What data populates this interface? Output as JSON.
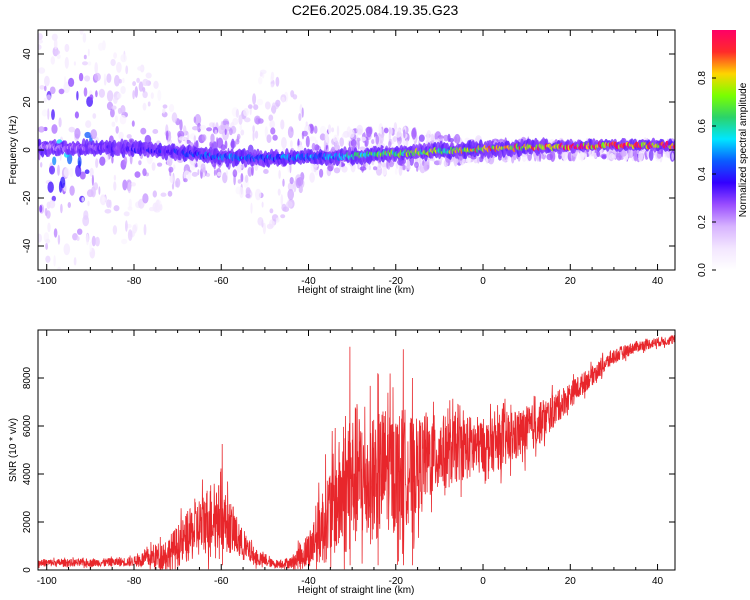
{
  "figure_title": "C2E6.2025.084.19.35.G23",
  "colors": {
    "snr_line": "#e8262b",
    "colormap": [
      "#ffffff",
      "#f3e6ff",
      "#d7b3ff",
      "#9a4dff",
      "#3300ff",
      "#0a5cff",
      "#00e6ff",
      "#2bd36a",
      "#7aff00",
      "#ffd400",
      "#ff2a2a",
      "#ff0066"
    ]
  },
  "chart_data": [
    {
      "type": "heatmap",
      "xlabel": "Height of straight line (km)",
      "ylabel": "Frequency (Hz)",
      "xlim": [
        -102,
        44
      ],
      "ylim": [
        -50,
        50
      ],
      "x_ticks": [
        -100,
        -80,
        -60,
        -40,
        -20,
        0,
        20,
        40
      ],
      "y_ticks": [
        -40,
        -20,
        0,
        20,
        40
      ],
      "colorbar": {
        "label": "Normalized spectral amplitude",
        "range": [
          0.0,
          1.0
        ],
        "ticks": [
          "0.0",
          "0.2",
          "0.4",
          "0.6",
          "0.8"
        ]
      },
      "ridge": {
        "x": [
          -100,
          -90,
          -80,
          -70,
          -60,
          -50,
          -40,
          -30,
          -20,
          -10,
          0,
          10,
          20,
          30,
          40
        ],
        "freq": [
          1.0,
          1.0,
          0.5,
          -1.0,
          -3.0,
          -3.5,
          -3.0,
          -2.5,
          -1.5,
          -0.5,
          0.5,
          1.0,
          1.5,
          2.0,
          2.0
        ],
        "amplitude": [
          0.25,
          0.3,
          0.35,
          0.4,
          0.5,
          0.45,
          0.5,
          0.6,
          0.7,
          0.75,
          0.85,
          0.9,
          0.95,
          0.95,
          0.95
        ]
      },
      "noise_spread": {
        "x": [
          -102,
          -95,
          -90,
          -80,
          -70,
          -60,
          -55,
          -50,
          -45,
          -40,
          -30,
          -20,
          -10,
          0,
          20,
          44
        ],
        "half_width": [
          50,
          50,
          50,
          40,
          15,
          10,
          20,
          35,
          30,
          12,
          8,
          10,
          6,
          4,
          3,
          3
        ]
      }
    },
    {
      "type": "line",
      "xlabel": "Height of straight line (km)",
      "ylabel": "SNR (10 * v/v)",
      "xlim": [
        -102,
        44
      ],
      "ylim": [
        0,
        10000
      ],
      "x_ticks": [
        -100,
        -80,
        -60,
        -40,
        -20,
        0,
        20,
        40
      ],
      "y_ticks": [
        0,
        2000,
        4000,
        6000,
        8000
      ],
      "envelope": {
        "x": [
          -102,
          -90,
          -80,
          -72,
          -68,
          -65,
          -62,
          -60,
          -58,
          -55,
          -52,
          -48,
          -44,
          -40,
          -37,
          -34,
          -31,
          -29,
          -27,
          -25,
          -22,
          -20,
          -18,
          -16,
          -14,
          -12,
          -10,
          -8,
          -5,
          -2,
          0,
          2,
          5,
          8,
          10,
          13,
          16,
          20,
          25,
          30,
          35,
          40,
          44
        ],
        "mean": [
          300,
          300,
          350,
          700,
          1300,
          1800,
          2300,
          2200,
          1800,
          1000,
          500,
          250,
          300,
          800,
          1800,
          2800,
          3400,
          4000,
          3600,
          3800,
          4300,
          4000,
          4300,
          4100,
          4600,
          4700,
          4900,
          4900,
          5100,
          5100,
          5200,
          5200,
          5400,
          5600,
          5800,
          6100,
          6600,
          7300,
          8100,
          8900,
          9300,
          9500,
          9600
        ],
        "amplitude": [
          200,
          200,
          250,
          900,
          1300,
          1600,
          1900,
          1700,
          1400,
          800,
          400,
          200,
          300,
          1000,
          2000,
          2800,
          3500,
          3800,
          3200,
          3400,
          3300,
          3200,
          3100,
          2700,
          2300,
          2200,
          2000,
          1900,
          1700,
          1700,
          1400,
          1400,
          1500,
          1300,
          1300,
          1100,
          900,
          700,
          500,
          400,
          300,
          250,
          250
        ]
      },
      "peaks": [
        {
          "x": -59.8,
          "y": 5250
        },
        {
          "x": -30.5,
          "y": 9300
        },
        {
          "x": -18.3,
          "y": 9200
        },
        {
          "x": -24.1,
          "y": 8200
        },
        {
          "x": -16.2,
          "y": 8000
        }
      ]
    }
  ]
}
